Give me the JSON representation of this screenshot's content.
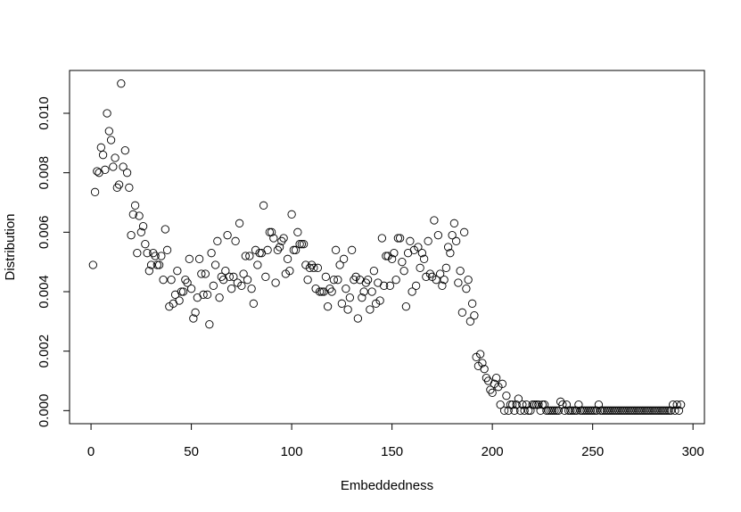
{
  "chart_data": {
    "type": "scatter",
    "xlabel": "Embeddedness",
    "ylabel": "Distribution",
    "xlim": [
      -10.7,
      305.7
    ],
    "ylim": [
      -0.00044,
      0.01144
    ],
    "xticks": [
      0,
      50,
      100,
      150,
      200,
      250,
      300
    ],
    "yticks": [
      {
        "value": 0,
        "label": "0.000"
      },
      {
        "value": 0.002,
        "label": "0.002"
      },
      {
        "value": 0.004,
        "label": "0.004"
      },
      {
        "value": 0.006,
        "label": "0.006"
      },
      {
        "value": 0.008,
        "label": "0.008"
      },
      {
        "value": 0.01,
        "label": "0.010"
      }
    ],
    "color": "#000000",
    "x": [
      1,
      2,
      3,
      4,
      5,
      6,
      7,
      8,
      9,
      10,
      11,
      12,
      13,
      14,
      15,
      16,
      17,
      18,
      19,
      20,
      21,
      22,
      23,
      24,
      25,
      26,
      27,
      28,
      29,
      30,
      31,
      32,
      33,
      34,
      35,
      36,
      37,
      38,
      39,
      40,
      41,
      42,
      43,
      44,
      45,
      46,
      47,
      48,
      49,
      50,
      51,
      52,
      53,
      54,
      55,
      56,
      57,
      58,
      59,
      60,
      61,
      62,
      63,
      64,
      65,
      66,
      67,
      68,
      69,
      70,
      71,
      72,
      73,
      74,
      75,
      76,
      77,
      78,
      79,
      80,
      81,
      82,
      83,
      84,
      85,
      86,
      87,
      88,
      89,
      90,
      91,
      92,
      93,
      94,
      95,
      96,
      97,
      98,
      99,
      100,
      101,
      102,
      103,
      104,
      105,
      106,
      107,
      108,
      109,
      110,
      111,
      112,
      113,
      114,
      115,
      116,
      117,
      118,
      119,
      120,
      121,
      122,
      123,
      124,
      125,
      126,
      127,
      128,
      129,
      130,
      131,
      132,
      133,
      134,
      135,
      136,
      137,
      138,
      139,
      140,
      141,
      142,
      143,
      144,
      145,
      146,
      147,
      148,
      149,
      150,
      151,
      152,
      153,
      154,
      155,
      156,
      157,
      158,
      159,
      160,
      161,
      162,
      163,
      164,
      165,
      166,
      167,
      168,
      169,
      170,
      171,
      172,
      173,
      174,
      175,
      176,
      177,
      178,
      179,
      180,
      181,
      182,
      183,
      184,
      185,
      186,
      187,
      188,
      189,
      190,
      191,
      192,
      193,
      194,
      195,
      196,
      197,
      198,
      199,
      200,
      201,
      202,
      203,
      204,
      205,
      206,
      207,
      208,
      209,
      210,
      211,
      212,
      213,
      214,
      215,
      216,
      217,
      218,
      219,
      220,
      221,
      222,
      223,
      224,
      225,
      226,
      227,
      228,
      229,
      230,
      231,
      232,
      233,
      234,
      235,
      236,
      237,
      238,
      239,
      240,
      241,
      242,
      243,
      244,
      245,
      246,
      247,
      248,
      249,
      250,
      251,
      252,
      253,
      254,
      255,
      256,
      257,
      258,
      259,
      260,
      261,
      262,
      263,
      264,
      265,
      266,
      267,
      268,
      269,
      270,
      271,
      272,
      273,
      274,
      275,
      276,
      277,
      278,
      279,
      280,
      281,
      282,
      283,
      284,
      285,
      286,
      287,
      288,
      289,
      290,
      291,
      292,
      293,
      294
    ],
    "values": [
      0.0049,
      0.00735,
      0.00805,
      0.008,
      0.00885,
      0.0086,
      0.0081,
      0.01,
      0.0094,
      0.0091,
      0.0082,
      0.0085,
      0.0075,
      0.0076,
      0.011,
      0.0082,
      0.00875,
      0.008,
      0.0075,
      0.0059,
      0.0066,
      0.0069,
      0.0053,
      0.00655,
      0.006,
      0.0062,
      0.0056,
      0.0053,
      0.0047,
      0.0049,
      0.0053,
      0.0052,
      0.0049,
      0.0049,
      0.0052,
      0.0044,
      0.0061,
      0.0054,
      0.0035,
      0.0044,
      0.0036,
      0.0039,
      0.0047,
      0.0037,
      0.004,
      0.004,
      0.0044,
      0.0043,
      0.0051,
      0.0041,
      0.0031,
      0.0033,
      0.0038,
      0.0051,
      0.0046,
      0.0039,
      0.0046,
      0.0039,
      0.0029,
      0.0053,
      0.0042,
      0.0049,
      0.0057,
      0.0038,
      0.0045,
      0.0044,
      0.0047,
      0.0059,
      0.0045,
      0.0041,
      0.0045,
      0.0057,
      0.0043,
      0.0063,
      0.0042,
      0.0046,
      0.0052,
      0.0044,
      0.0052,
      0.0041,
      0.0036,
      0.0054,
      0.0049,
      0.0053,
      0.0053,
      0.0069,
      0.0045,
      0.0054,
      0.006,
      0.006,
      0.0058,
      0.0043,
      0.0054,
      0.0055,
      0.0057,
      0.0058,
      0.0046,
      0.0051,
      0.0047,
      0.0066,
      0.0054,
      0.0054,
      0.006,
      0.0056,
      0.0056,
      0.0056,
      0.0049,
      0.0044,
      0.0048,
      0.0049,
      0.0048,
      0.0041,
      0.0048,
      0.004,
      0.004,
      0.004,
      0.0045,
      0.0035,
      0.0041,
      0.004,
      0.0044,
      0.0054,
      0.0044,
      0.0049,
      0.0036,
      0.0051,
      0.0041,
      0.0034,
      0.0038,
      0.0054,
      0.0044,
      0.0045,
      0.0031,
      0.0044,
      0.0038,
      0.004,
      0.0043,
      0.0044,
      0.0034,
      0.004,
      0.0047,
      0.0036,
      0.0043,
      0.0037,
      0.0058,
      0.0042,
      0.0052,
      0.0052,
      0.0042,
      0.0051,
      0.0053,
      0.0044,
      0.0058,
      0.0058,
      0.005,
      0.0047,
      0.0035,
      0.0053,
      0.0057,
      0.004,
      0.0054,
      0.0042,
      0.0055,
      0.0048,
      0.0053,
      0.0051,
      0.0045,
      0.0057,
      0.0046,
      0.0045,
      0.0064,
      0.0044,
      0.0059,
      0.0046,
      0.0042,
      0.0044,
      0.0048,
      0.0055,
      0.0053,
      0.0059,
      0.0063,
      0.0057,
      0.0043,
      0.0047,
      0.0033,
      0.006,
      0.0041,
      0.0044,
      0.003,
      0.0036,
      0.0032,
      0.0018,
      0.0015,
      0.0019,
      0.0016,
      0.0014,
      0.0011,
      0.001,
      0.0007,
      0.0006,
      0.0009,
      0.0011,
      0.0008,
      0.0002,
      0.0009,
      0,
      0.0005,
      0,
      0.0002,
      0.0002,
      0,
      0.0002,
      0.0004,
      0,
      0.0002,
      0,
      0.0002,
      0,
      0,
      0.0002,
      0.0002,
      0.0002,
      0.0002,
      0,
      0.0002,
      0.0002,
      0,
      0,
      0,
      0,
      0,
      0,
      0,
      0.0003,
      0.0002,
      0,
      0.0002,
      0,
      0,
      0,
      0,
      0,
      0.0002,
      0,
      0,
      0,
      0,
      0,
      0,
      0,
      0,
      0,
      0.0002,
      0,
      0,
      0,
      0,
      0,
      0,
      0,
      0,
      0,
      0,
      0,
      0,
      0,
      0,
      0,
      0,
      0,
      0,
      0,
      0,
      0,
      0,
      0,
      0,
      0,
      0,
      0,
      0,
      0,
      0,
      0,
      0,
      0,
      0,
      0,
      0,
      0.0002,
      0,
      0.0002,
      0,
      0.0002
    ]
  }
}
